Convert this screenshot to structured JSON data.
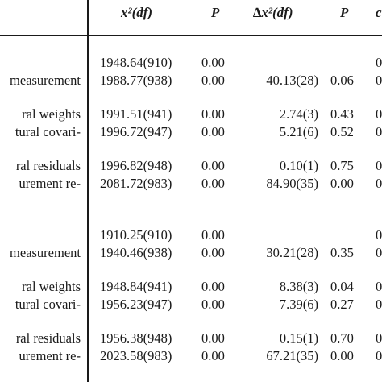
{
  "headers": {
    "chi_df": "x²(df)",
    "p1": "P",
    "delta_chi_df": "∆x²(df)",
    "p2": "P",
    "last_partial": "c"
  },
  "groups": [
    {
      "rows": [
        {
          "label": "",
          "chi": "1948.64(910)",
          "p": "0.00",
          "dchi": "",
          "dp": "",
          "last": "0"
        },
        {
          "label": "measurement",
          "chi": "1988.77(938)",
          "p": "0.00",
          "dchi": "40.13(28)",
          "dp": "0.06",
          "last": "0"
        },
        {
          "label": "ral weights",
          "chi": "1991.51(941)",
          "p": "0.00",
          "dchi": "2.74(3)",
          "dp": "0.43",
          "last": "0"
        },
        {
          "label": "tural covari-",
          "chi": "1996.72(947)",
          "p": "0.00",
          "dchi": "5.21(6)",
          "dp": "0.52",
          "last": "0"
        },
        {
          "label": "ral residuals",
          "chi": "1996.82(948)",
          "p": "0.00",
          "dchi": "0.10(1)",
          "dp": "0.75",
          "last": "0"
        },
        {
          "label": "urement re-",
          "chi": "2081.72(983)",
          "p": "0.00",
          "dchi": "84.90(35)",
          "dp": "0.00",
          "last": "0"
        }
      ]
    },
    {
      "rows": [
        {
          "label": "",
          "chi": "1910.25(910)",
          "p": "0.00",
          "dchi": "",
          "dp": "",
          "last": "0"
        },
        {
          "label": "measurement",
          "chi": "1940.46(938)",
          "p": "0.00",
          "dchi": "30.21(28)",
          "dp": "0.35",
          "last": "0"
        },
        {
          "label": "ral weights",
          "chi": "1948.84(941)",
          "p": "0.00",
          "dchi": "8.38(3)",
          "dp": "0.04",
          "last": "0"
        },
        {
          "label": "tural covari-",
          "chi": "1956.23(947)",
          "p": "0.00",
          "dchi": "7.39(6)",
          "dp": "0.27",
          "last": "0"
        },
        {
          "label": "ral residuals",
          "chi": "1956.38(948)",
          "p": "0.00",
          "dchi": "0.15(1)",
          "dp": "0.70",
          "last": "0"
        },
        {
          "label": "urement re-",
          "chi": "2023.58(983)",
          "p": "0.00",
          "dchi": "67.21(35)",
          "dp": "0.00",
          "last": "0"
        }
      ]
    }
  ]
}
